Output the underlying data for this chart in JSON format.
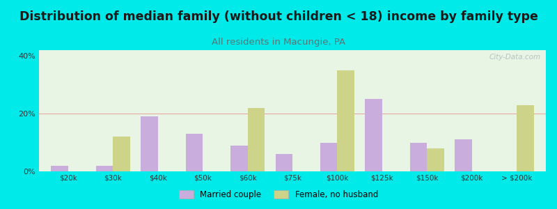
{
  "title": "Distribution of median family (without children < 18) income by family type",
  "subtitle": "All residents in Macungie, PA",
  "categories": [
    "$20k",
    "$30k",
    "$40k",
    "$50k",
    "$60k",
    "$75k",
    "$100k",
    "$125k",
    "$150k",
    "$200k",
    "> $200k"
  ],
  "married_couple": [
    2.0,
    2.0,
    19.0,
    13.0,
    9.0,
    6.0,
    10.0,
    25.0,
    10.0,
    11.0,
    0.0
  ],
  "female_no_husband": [
    0.0,
    12.0,
    0.0,
    0.0,
    22.0,
    0.0,
    35.0,
    0.0,
    8.0,
    0.0,
    23.0
  ],
  "married_color": "#c9aedd",
  "female_color": "#cdd48a",
  "background_outer": "#00eaea",
  "background_inner": "#e8f5e4",
  "ylim": [
    0,
    42
  ],
  "yticks": [
    0,
    20,
    40
  ],
  "ytick_labels": [
    "0%",
    "20%",
    "40%"
  ],
  "grid_color": "#e8a8a8",
  "bar_width": 0.38,
  "title_fontsize": 12.5,
  "subtitle_fontsize": 9.5,
  "subtitle_color": "#557777",
  "title_color": "#1a1a1a",
  "legend_labels": [
    "Married couple",
    "Female, no husband"
  ],
  "watermark": "City-Data.com",
  "tick_color": "#333333"
}
